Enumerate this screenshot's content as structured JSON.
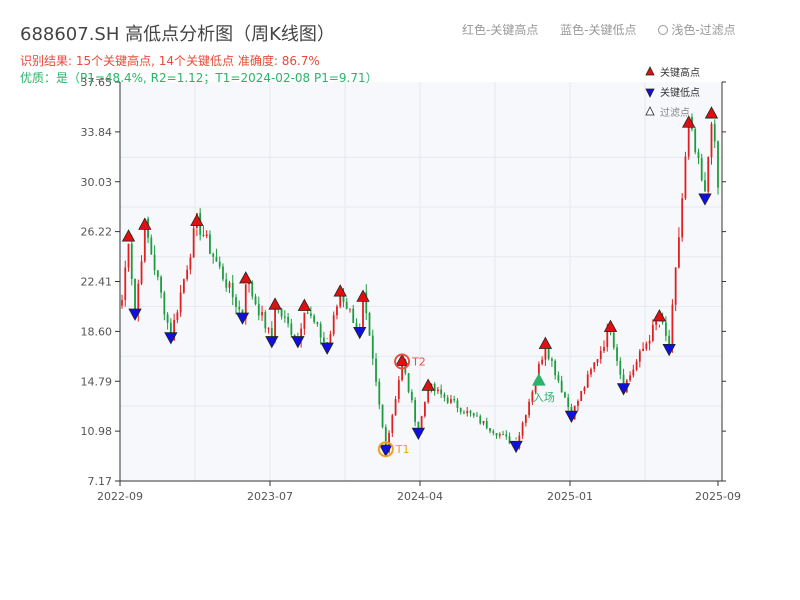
{
  "title": "688607.SH 高低点分析图（周K线图）",
  "subtitle_result": "识别结果: 15个关键高点, 14个关键低点   准确度: 86.7%",
  "subtitle_quality": "优质：是（P1=48.4%, R2=1.12；T1=2024-02-08 P1=9.71）",
  "top_legend": {
    "red": "红色-关键高点",
    "blue": "蓝色-关键低点",
    "light": "浅色-过滤点"
  },
  "colors": {
    "up": "#e02020",
    "down": "#1e9b3e",
    "high_marker": "#e01010",
    "low_marker": "#1010dd",
    "t1": "#f0a020",
    "t2": "#e85040",
    "entry": "#2bb36a",
    "grid": "#e6e9ef",
    "plot_bg": "#f6f8fb"
  },
  "chart_data": {
    "type": "candlestick",
    "y_ticks": [
      7.17,
      10.98,
      14.79,
      18.6,
      22.41,
      26.22,
      30.03,
      33.84,
      37.65
    ],
    "ylim": [
      7.17,
      37.65
    ],
    "x_ticks": [
      "2022-09",
      "2023-07",
      "2024-04",
      "2025-01",
      "2025-09"
    ],
    "legend": [
      {
        "label": "关键高点",
        "marker": "up-triangle",
        "color": "red"
      },
      {
        "label": "关键低点",
        "marker": "down-triangle",
        "color": "blue"
      },
      {
        "label": "过滤点",
        "marker": "up-triangle-outline",
        "color": "white"
      }
    ],
    "points_high": [
      {
        "i": 2,
        "y": 25.8
      },
      {
        "i": 7,
        "y": 26.7
      },
      {
        "i": 23,
        "y": 27.0
      },
      {
        "i": 38,
        "y": 22.6
      },
      {
        "i": 47,
        "y": 20.6
      },
      {
        "i": 56,
        "y": 20.5
      },
      {
        "i": 67,
        "y": 21.6
      },
      {
        "i": 74,
        "y": 21.2
      },
      {
        "i": 86,
        "y": 16.3
      },
      {
        "i": 94,
        "y": 14.4
      },
      {
        "i": 130,
        "y": 17.6
      },
      {
        "i": 150,
        "y": 18.9
      },
      {
        "i": 165,
        "y": 19.7
      },
      {
        "i": 174,
        "y": 34.5
      },
      {
        "i": 181,
        "y": 35.2
      }
    ],
    "points_low": [
      {
        "i": 4,
        "y": 20.0
      },
      {
        "i": 15,
        "y": 18.2
      },
      {
        "i": 37,
        "y": 19.7
      },
      {
        "i": 46,
        "y": 17.9
      },
      {
        "i": 54,
        "y": 17.9
      },
      {
        "i": 63,
        "y": 17.4
      },
      {
        "i": 73,
        "y": 18.6
      },
      {
        "i": 81,
        "y": 9.6
      },
      {
        "i": 91,
        "y": 10.9
      },
      {
        "i": 121,
        "y": 9.9
      },
      {
        "i": 138,
        "y": 12.2
      },
      {
        "i": 154,
        "y": 14.3
      },
      {
        "i": 168,
        "y": 17.3
      },
      {
        "i": 179,
        "y": 28.8
      }
    ],
    "annotations": [
      {
        "label": "T1",
        "i": 81,
        "y": 9.6
      },
      {
        "label": "T2",
        "i": 86,
        "y": 16.3
      },
      {
        "label": "入场",
        "i": 128,
        "y": 14.8
      }
    ]
  }
}
